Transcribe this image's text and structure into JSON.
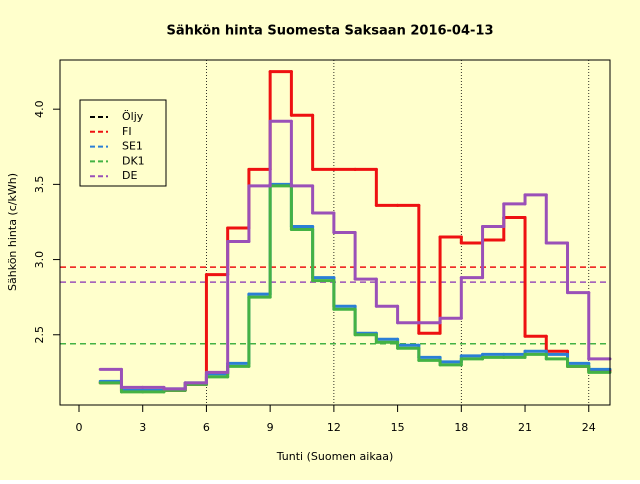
{
  "chart_data": {
    "type": "step",
    "title": "Sähkön hinta Suomesta Saksaan 2016-04-13",
    "xlabel": "Tunti (Suomen aikaa)",
    "ylabel": "Sähkön hinta (c/kWh)",
    "x": [
      1,
      2,
      3,
      4,
      5,
      6,
      7,
      8,
      9,
      10,
      11,
      12,
      13,
      14,
      15,
      16,
      17,
      18,
      19,
      20,
      21,
      22,
      23,
      24
    ],
    "series": [
      {
        "name": "Öljy",
        "color": "#000000"
      },
      {
        "name": "FI",
        "color": "#ee1111",
        "level": 2.95,
        "values": [
          2.18,
          2.13,
          2.13,
          2.13,
          2.17,
          2.9,
          3.21,
          3.6,
          4.25,
          3.96,
          3.6,
          3.6,
          3.6,
          3.36,
          3.36,
          2.51,
          3.15,
          3.11,
          3.13,
          3.28,
          2.49,
          2.39,
          2.29,
          2.26
        ]
      },
      {
        "name": "SE1",
        "color": "#2b7fd6",
        "values": [
          2.19,
          2.13,
          2.13,
          2.14,
          2.18,
          2.24,
          2.31,
          2.77,
          3.5,
          3.22,
          2.88,
          2.69,
          2.51,
          2.47,
          2.43,
          2.35,
          2.32,
          2.36,
          2.37,
          2.37,
          2.39,
          2.37,
          2.31,
          2.27
        ]
      },
      {
        "name": "DK1",
        "color": "#44b244",
        "level": 2.44,
        "values": [
          2.18,
          2.12,
          2.12,
          2.13,
          2.17,
          2.22,
          2.29,
          2.75,
          3.49,
          3.2,
          2.86,
          2.67,
          2.5,
          2.45,
          2.41,
          2.33,
          2.3,
          2.34,
          2.35,
          2.35,
          2.37,
          2.34,
          2.29,
          2.25
        ]
      },
      {
        "name": "DE",
        "color": "#9a50b8",
        "level": 2.85,
        "values": [
          2.27,
          2.15,
          2.15,
          2.14,
          2.18,
          2.25,
          3.12,
          3.49,
          3.92,
          3.49,
          3.31,
          3.18,
          2.87,
          2.69,
          2.58,
          2.58,
          2.61,
          2.88,
          3.22,
          3.37,
          3.43,
          3.11,
          2.78,
          2.34
        ]
      }
    ],
    "vlines": [
      6,
      12,
      18,
      24
    ],
    "xlim": [
      -0.894,
      25
    ],
    "ylim": [
      2.033,
      4.327
    ],
    "xticks": [
      0,
      3,
      6,
      9,
      12,
      15,
      18,
      21,
      24
    ],
    "yticks": [
      2.5,
      {
        "value": 3,
        "label": "3.0"
      },
      3.5,
      {
        "value": 4,
        "label": "4.0"
      }
    ],
    "legend": "topleft",
    "background": "#ffffcc"
  }
}
